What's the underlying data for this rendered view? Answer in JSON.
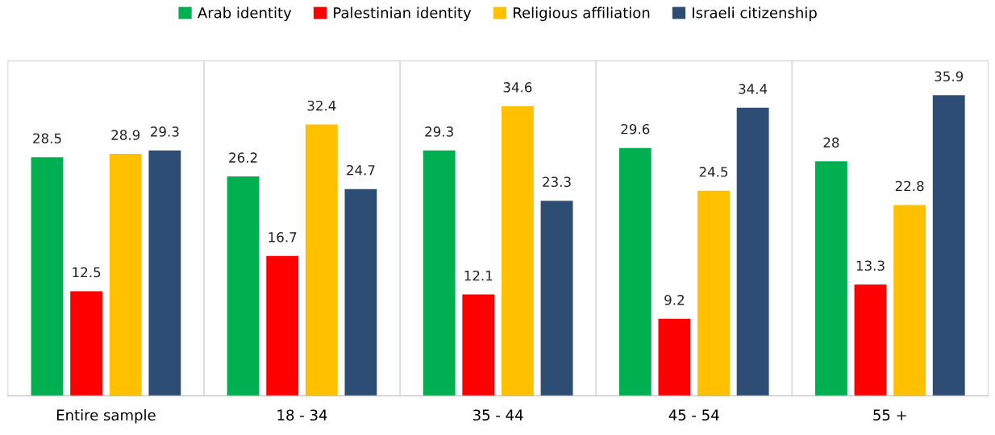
{
  "chart_data": {
    "type": "bar",
    "categories": [
      "Entire sample",
      "18 - 34",
      "35 - 44",
      "45 - 54",
      "55 +"
    ],
    "series": [
      {
        "name": "Arab identity",
        "color": "#00b050",
        "values": [
          28.5,
          26.2,
          29.3,
          29.6,
          28
        ]
      },
      {
        "name": "Palestinian identity",
        "color": "#ff0000",
        "values": [
          12.5,
          16.7,
          12.1,
          9.2,
          13.3
        ]
      },
      {
        "name": "Religious affiliation",
        "color": "#ffc000",
        "values": [
          28.9,
          32.4,
          34.6,
          24.5,
          22.8
        ]
      },
      {
        "name": "Israeli citizenship",
        "color": "#2e4d75",
        "values": [
          29.3,
          24.7,
          23.3,
          34.4,
          35.9
        ]
      }
    ],
    "ylim": [
      0,
      40
    ],
    "tick_labels": "x",
    "data_labels": true,
    "grid": "x",
    "legend": "top"
  }
}
